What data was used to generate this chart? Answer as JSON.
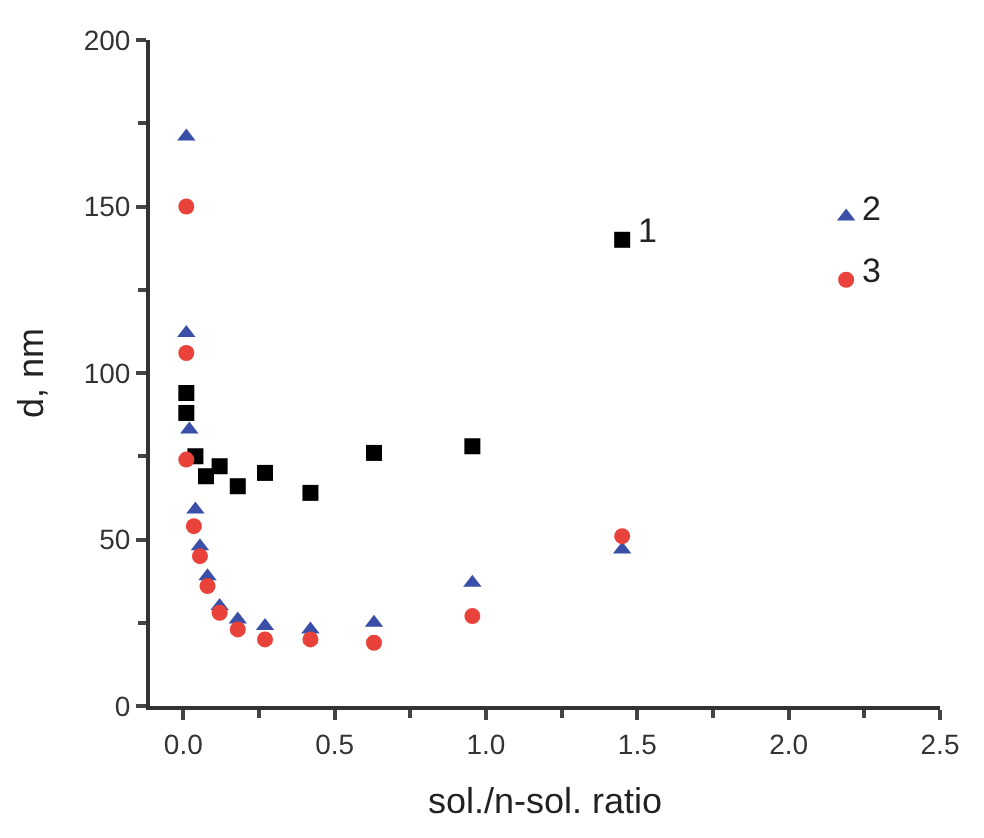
{
  "chart_data": {
    "type": "scatter",
    "xlabel": "sol./n-sol. ratio",
    "ylabel": "d, nm",
    "xlim": [
      -0.11,
      2.5
    ],
    "xticks": [
      {
        "value": 0,
        "label": "0.0"
      },
      0.5,
      {
        "value": 1,
        "label": "1.0"
      },
      1.5,
      {
        "value": 2,
        "label": "2.0"
      },
      2.5
    ],
    "ylim": [
      0,
      200
    ],
    "yticks": [
      0,
      50,
      100,
      150,
      200
    ],
    "series": [
      {
        "name": "1",
        "color": "#000000",
        "marker": "square",
        "x": [
          0.01,
          0.01,
          0.04,
          0.075,
          0.12,
          0.18,
          0.27,
          0.42,
          0.63,
          0.955,
          1.45
        ],
        "values": [
          94,
          88,
          75,
          69,
          72,
          66,
          70,
          64,
          76,
          78,
          140
        ]
      },
      {
        "name": "2",
        "color": "#3a4fa8",
        "marker": "triangle",
        "x": [
          0.01,
          0.01,
          0.02,
          0.04,
          0.055,
          0.08,
          0.12,
          0.18,
          0.27,
          0.42,
          0.63,
          0.955,
          1.45,
          2.19
        ],
        "values": [
          171,
          112,
          83,
          59,
          48,
          39,
          30,
          26,
          24,
          23,
          25,
          37,
          47,
          147
        ]
      },
      {
        "name": "3",
        "color": "#e8423a",
        "marker": "circle",
        "x": [
          0.01,
          0.01,
          0.01,
          0.035,
          0.055,
          0.08,
          0.12,
          0.18,
          0.27,
          0.42,
          0.63,
          0.955,
          1.45,
          2.19
        ],
        "values": [
          150,
          106,
          74,
          54,
          45,
          36,
          28,
          23,
          20,
          20,
          19,
          27,
          51,
          128
        ]
      }
    ]
  }
}
